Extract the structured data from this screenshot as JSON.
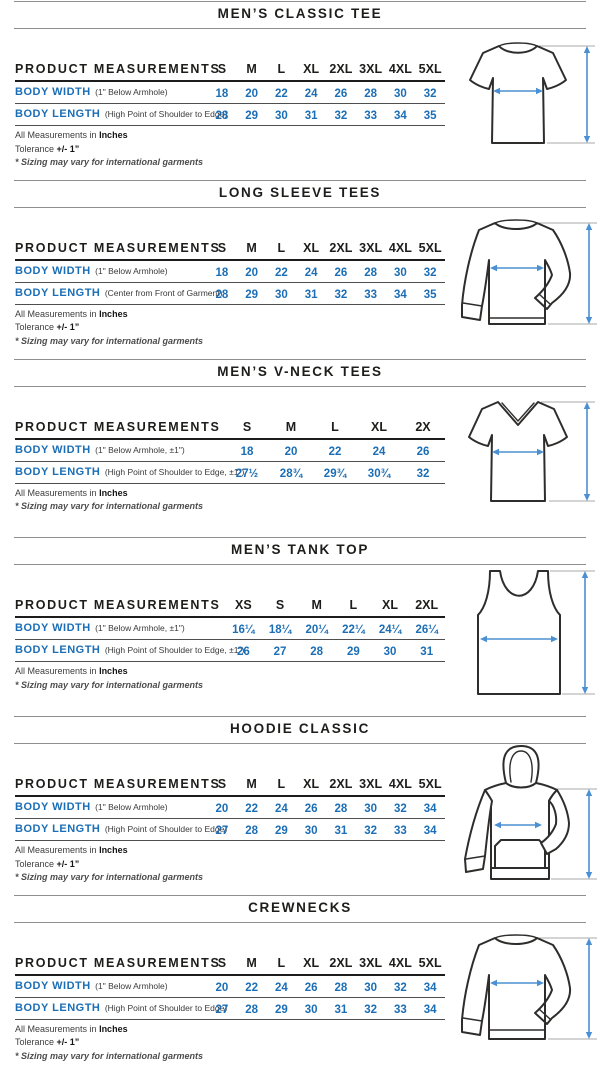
{
  "labels": {
    "product_measurements": "PRODUCT MEASUREMENTS",
    "measurements_prefix": "All Measurements in",
    "inches": "Inches",
    "tolerance_prefix": "Tolerance",
    "tolerance_value": "+/- 1”",
    "sizing_note": "* Sizing may vary for international garments"
  },
  "colors": {
    "accent_blue": "#1b6eb5",
    "arrow_blue": "#4a90d2",
    "ink": "#231f20"
  },
  "sections": [
    {
      "title": "MEN’S CLASSIC TEE",
      "illustration": "classic-tee",
      "sizes": [
        "S",
        "M",
        "L",
        "XL",
        "2XL",
        "3XL",
        "4XL",
        "5XL"
      ],
      "rows": [
        {
          "label": "BODY WIDTH",
          "sublabel": "(1\" Below Armhole)",
          "values": [
            "18",
            "20",
            "22",
            "24",
            "26",
            "28",
            "30",
            "32"
          ]
        },
        {
          "label": "BODY LENGTH",
          "sublabel": "(High Point of Shoulder to Edge)",
          "values": [
            "28",
            "29",
            "30",
            "31",
            "32",
            "33",
            "34",
            "35"
          ]
        }
      ]
    },
    {
      "title": "LONG SLEEVE TEES",
      "illustration": "long-sleeve-tee",
      "sizes": [
        "S",
        "M",
        "L",
        "XL",
        "2XL",
        "3XL",
        "4XL",
        "5XL"
      ],
      "rows": [
        {
          "label": "BODY WIDTH",
          "sublabel": "(1\" Below Armhole)",
          "values": [
            "18",
            "20",
            "22",
            "24",
            "26",
            "28",
            "30",
            "32"
          ]
        },
        {
          "label": "BODY LENGTH",
          "sublabel": "(Center from Front of Garment)",
          "values": [
            "28",
            "29",
            "30",
            "31",
            "32",
            "33",
            "34",
            "35"
          ]
        }
      ]
    },
    {
      "title": "MEN’S V-NECK TEES",
      "illustration": "v-neck-tee",
      "sizes": [
        "S",
        "M",
        "L",
        "XL",
        "2X"
      ],
      "rows": [
        {
          "label": "BODY WIDTH",
          "sublabel": "(1\" Below Armhole, ±1\")",
          "values": [
            "18",
            "20",
            "22",
            "24",
            "26"
          ]
        },
        {
          "label": "BODY LENGTH",
          "sublabel": "(High Point of Shoulder to Edge, ±1\")",
          "values": [
            "27½",
            "28¾",
            "29¾",
            "30¾",
            "32"
          ]
        }
      ]
    },
    {
      "title": "MEN’S TANK TOP",
      "illustration": "tank-top",
      "sizes": [
        "XS",
        "S",
        "M",
        "L",
        "XL",
        "2XL"
      ],
      "rows": [
        {
          "label": "BODY WIDTH",
          "sublabel": "(1\" Below Armhole, ±1\")",
          "values": [
            "16¼",
            "18¼",
            "20¼",
            "22¼",
            "24¼",
            "26¼"
          ]
        },
        {
          "label": "BODY LENGTH",
          "sublabel": "(High Point of Shoulder to Edge, ±1\")",
          "values": [
            "26",
            "27",
            "28",
            "29",
            "30",
            "31"
          ]
        }
      ]
    },
    {
      "title": "HOODIE CLASSIC",
      "illustration": "hoodie",
      "sizes": [
        "S",
        "M",
        "L",
        "XL",
        "2XL",
        "3XL",
        "4XL",
        "5XL"
      ],
      "rows": [
        {
          "label": "BODY WIDTH",
          "sublabel": "(1\" Below Armhole)",
          "values": [
            "20",
            "22",
            "24",
            "26",
            "28",
            "30",
            "32",
            "34"
          ]
        },
        {
          "label": "BODY LENGTH",
          "sublabel": "(High Point of Shoulder to Edge)",
          "values": [
            "27",
            "28",
            "29",
            "30",
            "31",
            "32",
            "33",
            "34"
          ]
        }
      ]
    },
    {
      "title": "CREWNECKS",
      "illustration": "crewneck",
      "sizes": [
        "S",
        "M",
        "L",
        "XL",
        "2XL",
        "3XL",
        "4XL",
        "5XL"
      ],
      "rows": [
        {
          "label": "BODY WIDTH",
          "sublabel": "(1\" Below Armhole)",
          "values": [
            "20",
            "22",
            "24",
            "26",
            "28",
            "30",
            "32",
            "34"
          ]
        },
        {
          "label": "BODY LENGTH",
          "sublabel": "(High Point of Shoulder to Edge)",
          "values": [
            "27",
            "28",
            "29",
            "30",
            "31",
            "32",
            "33",
            "34"
          ]
        }
      ]
    }
  ]
}
